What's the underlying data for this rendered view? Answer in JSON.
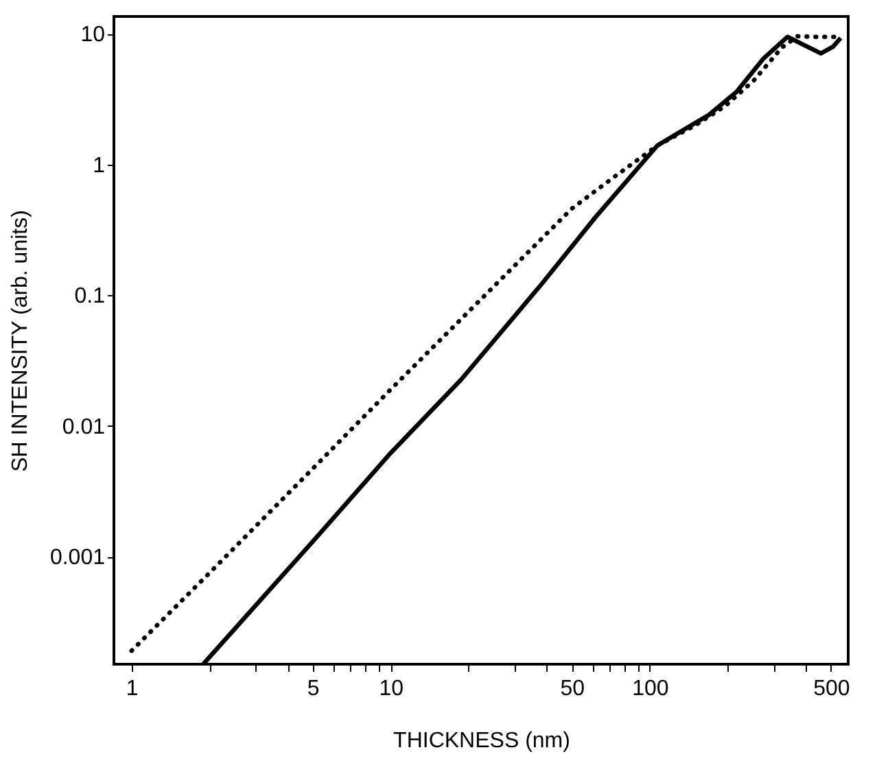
{
  "chart_data": {
    "type": "line",
    "xlabel": "THICKNESS (nm)",
    "ylabel": "SH INTENSITY (arb. units)",
    "log": "xy",
    "grid": false,
    "xlim": [
      0.855,
      583
    ],
    "ylim": [
      0.00015,
      13.6
    ],
    "xticks": [
      1,
      {
        "value": 2,
        "label": null
      },
      {
        "value": 3,
        "label": null
      },
      {
        "value": 4,
        "label": null
      },
      5,
      {
        "value": 6,
        "label": null
      },
      {
        "value": 7,
        "label": null
      },
      {
        "value": 8,
        "label": null
      },
      {
        "value": 9,
        "label": null
      },
      10,
      {
        "value": 20,
        "label": null
      },
      {
        "value": 30,
        "label": null
      },
      {
        "value": 40,
        "label": null
      },
      50,
      {
        "value": 60,
        "label": null
      },
      {
        "value": 70,
        "label": null
      },
      {
        "value": 80,
        "label": null
      },
      {
        "value": 90,
        "label": null
      },
      100,
      {
        "value": 200,
        "label": null
      },
      {
        "value": 300,
        "label": null
      },
      {
        "value": 400,
        "label": null
      },
      500
    ],
    "yticks": [
      0.001,
      0.01,
      0.1,
      1,
      10
    ],
    "series": [
      {
        "color": "#000000",
        "line_style": "dotted",
        "x": [
          1,
          2,
          5,
          10,
          20,
          50,
          72,
          107,
          150,
          195,
          252,
          324,
          372,
          430,
          500,
          545
        ],
        "values": [
          0.00019,
          0.00075,
          0.0047,
          0.019,
          0.075,
          0.46,
          0.79,
          1.4,
          2.0,
          2.8,
          4.4,
          7.9,
          9.6,
          9.5,
          9.5,
          9.5
        ]
      },
      {
        "color": "#000000",
        "line_style": "solid",
        "x": [
          1.89,
          5,
          10,
          18.7,
          38,
          62,
          107,
          169,
          216,
          275,
          340,
          390,
          458,
          510,
          545
        ],
        "values": [
          0.00015,
          0.0013,
          0.0062,
          0.0226,
          0.12,
          0.4,
          1.4,
          2.4,
          3.6,
          6.5,
          9.5,
          8.3,
          7.1,
          8.0,
          9.3
        ]
      }
    ]
  }
}
